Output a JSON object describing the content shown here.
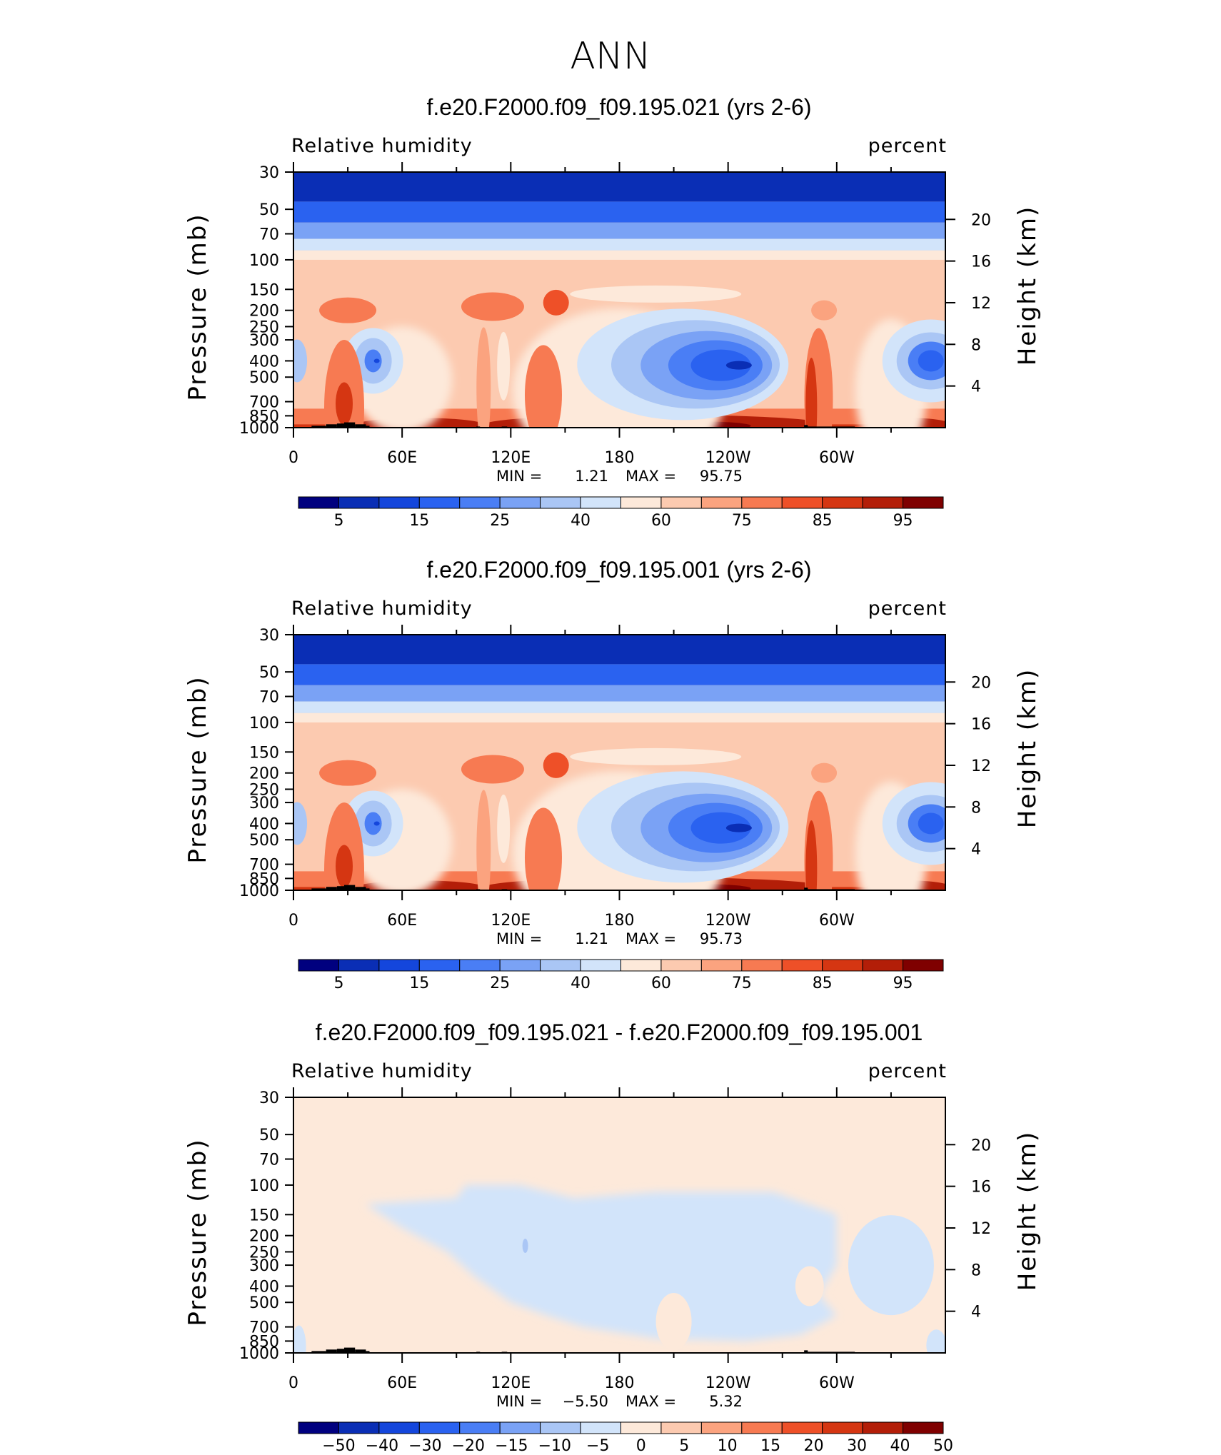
{
  "figure_title": "ANN",
  "colors": {
    "land_mask": "#000000",
    "frame": "#000000"
  },
  "chart_data": [
    {
      "type": "heatmap",
      "title": "f.e20.F2000.f09_f09.195.021 (yrs 2-6)",
      "left_label": "Relative humidity",
      "right_label": "percent",
      "ylabel": "Pressure (mb)",
      "ylabel_right": "Height (km)",
      "x_ticks": [
        "0",
        "60E",
        "120E",
        "180",
        "120W",
        "60W"
      ],
      "x_tick_values": [
        0,
        60,
        120,
        180,
        240,
        300
      ],
      "xlim": [
        0,
        360
      ],
      "y_ticks": [
        "30",
        "50",
        "70",
        "100",
        "150",
        "200",
        "250",
        "300",
        "400",
        "500",
        "700",
        "850",
        "1000"
      ],
      "y_tick_values": [
        30,
        50,
        70,
        100,
        150,
        200,
        250,
        300,
        400,
        500,
        700,
        850,
        1000
      ],
      "ylim": [
        1000,
        30
      ],
      "height_ticks": [
        "20",
        "16",
        "12",
        "8",
        "4"
      ],
      "height_tick_values": [
        20,
        16,
        12,
        8,
        4
      ],
      "min_label": "MIN =",
      "min_value": "1.21",
      "max_label": "MAX =",
      "max_value": "95.75",
      "colorbar_levels": [
        "5",
        "15",
        "25",
        "40",
        "60",
        "75",
        "85",
        "95"
      ],
      "colorbar_colors": [
        "#00007f",
        "#0a2eb5",
        "#1446dc",
        "#2a62f0",
        "#4a7ef5",
        "#7aa2f5",
        "#aac6f5",
        "#d2e4fa",
        "#fde9da",
        "#fccab0",
        "#fba37f",
        "#f77a52",
        "#ee5028",
        "#d53612",
        "#b31e08",
        "#7f0000"
      ]
    },
    {
      "type": "heatmap",
      "title": "f.e20.F2000.f09_f09.195.001 (yrs 2-6)",
      "left_label": "Relative humidity",
      "right_label": "percent",
      "ylabel": "Pressure (mb)",
      "ylabel_right": "Height (km)",
      "x_ticks": [
        "0",
        "60E",
        "120E",
        "180",
        "120W",
        "60W"
      ],
      "x_tick_values": [
        0,
        60,
        120,
        180,
        240,
        300
      ],
      "xlim": [
        0,
        360
      ],
      "y_ticks": [
        "30",
        "50",
        "70",
        "100",
        "150",
        "200",
        "250",
        "300",
        "400",
        "500",
        "700",
        "850",
        "1000"
      ],
      "y_tick_values": [
        30,
        50,
        70,
        100,
        150,
        200,
        250,
        300,
        400,
        500,
        700,
        850,
        1000
      ],
      "ylim": [
        1000,
        30
      ],
      "height_ticks": [
        "20",
        "16",
        "12",
        "8",
        "4"
      ],
      "height_tick_values": [
        20,
        16,
        12,
        8,
        4
      ],
      "min_label": "MIN =",
      "min_value": "1.21",
      "max_label": "MAX =",
      "max_value": "95.73",
      "colorbar_levels": [
        "5",
        "15",
        "25",
        "40",
        "60",
        "75",
        "85",
        "95"
      ],
      "colorbar_colors": [
        "#00007f",
        "#0a2eb5",
        "#1446dc",
        "#2a62f0",
        "#4a7ef5",
        "#7aa2f5",
        "#aac6f5",
        "#d2e4fa",
        "#fde9da",
        "#fccab0",
        "#fba37f",
        "#f77a52",
        "#ee5028",
        "#d53612",
        "#b31e08",
        "#7f0000"
      ]
    },
    {
      "type": "heatmap",
      "title": "f.e20.F2000.f09_f09.195.021 - f.e20.F2000.f09_f09.195.001",
      "left_label": "Relative humidity",
      "right_label": "percent",
      "ylabel": "Pressure (mb)",
      "ylabel_right": "Height (km)",
      "x_ticks": [
        "0",
        "60E",
        "120E",
        "180",
        "120W",
        "60W"
      ],
      "x_tick_values": [
        0,
        60,
        120,
        180,
        240,
        300
      ],
      "xlim": [
        0,
        360
      ],
      "y_ticks": [
        "30",
        "50",
        "70",
        "100",
        "150",
        "200",
        "250",
        "300",
        "400",
        "500",
        "700",
        "850",
        "1000"
      ],
      "y_tick_values": [
        30,
        50,
        70,
        100,
        150,
        200,
        250,
        300,
        400,
        500,
        700,
        850,
        1000
      ],
      "ylim": [
        1000,
        30
      ],
      "height_ticks": [
        "20",
        "16",
        "12",
        "8",
        "4"
      ],
      "height_tick_values": [
        20,
        16,
        12,
        8,
        4
      ],
      "min_label": "MIN =",
      "min_value": "−5.50",
      "max_label": "MAX =",
      "max_value": "5.32",
      "colorbar_levels": [
        "−50",
        "−40",
        "−30",
        "−20",
        "−15",
        "−10",
        "−5",
        "0",
        "5",
        "10",
        "15",
        "20",
        "30",
        "40",
        "50"
      ],
      "colorbar_colors": [
        "#00007f",
        "#0a2eb5",
        "#1446dc",
        "#2a62f0",
        "#4a7ef5",
        "#7aa2f5",
        "#aac6f5",
        "#d2e4fa",
        "#fde9da",
        "#fccab0",
        "#fba37f",
        "#f77a52",
        "#ee5028",
        "#d53612",
        "#b31e08",
        "#7f0000"
      ]
    }
  ]
}
